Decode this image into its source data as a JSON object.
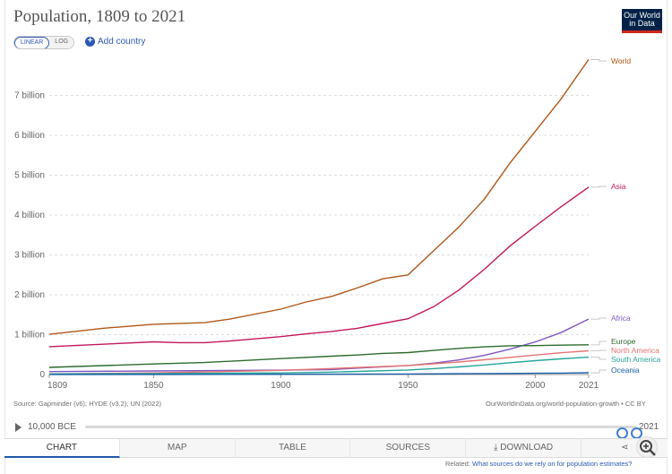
{
  "header": {
    "title": "Population, 1809 to 2021",
    "logo_line1": "Our World",
    "logo_line2": "in Data"
  },
  "controls": {
    "linear_label": "LINEAR",
    "log_label": "LOG",
    "add_country_label": "Add country"
  },
  "footer": {
    "source": "Source: Gapminder (v6); HYDE (v3.2); UN (2022)",
    "cite": "OurWorldInData.org/world-population-growth • CC BY",
    "related_prefix": "Related:",
    "related_link": "What sources do we rely on for population estimates?"
  },
  "timeline": {
    "start_label": "10,000 BCE",
    "end_label": "2021",
    "range_start": 0.977,
    "range_end": 1.0
  },
  "tabs": [
    "CHART",
    "MAP",
    "TABLE",
    "SOURCES",
    "DOWNLOAD"
  ],
  "colors": {
    "accent": "#2c5ab3",
    "logo_bg": "#002147",
    "logo_red": "#ce261e",
    "active_tab": "#1e5aa8"
  },
  "icons": {
    "play": "play-icon",
    "share": "share-icon",
    "zoom": "zoom-icon",
    "download": "download-icon"
  },
  "chart_data": {
    "type": "line",
    "title": "Population, 1809 to 2021",
    "x_range": [
      1809,
      2021
    ],
    "ylim": [
      0,
      8000000000
    ],
    "x_ticks": [
      1809,
      1850,
      1900,
      1950,
      2000,
      2021
    ],
    "y_ticks": [
      {
        "value": 0,
        "label": "0"
      },
      {
        "value": 1000000000,
        "label": "1 billion"
      },
      {
        "value": 2000000000,
        "label": "2 billion"
      },
      {
        "value": 3000000000,
        "label": "3 billion"
      },
      {
        "value": 4000000000,
        "label": "4 billion"
      },
      {
        "value": 5000000000,
        "label": "5 billion"
      },
      {
        "value": 6000000000,
        "label": "6 billion"
      },
      {
        "value": 7000000000,
        "label": "7 billion"
      }
    ],
    "grid": true,
    "series": [
      {
        "name": "World",
        "color": "#b1561a",
        "points": [
          [
            1809,
            1010000000
          ],
          [
            1830,
            1160000000
          ],
          [
            1850,
            1260000000
          ],
          [
            1870,
            1300000000
          ],
          [
            1880,
            1390000000
          ],
          [
            1900,
            1640000000
          ],
          [
            1910,
            1820000000
          ],
          [
            1920,
            1960000000
          ],
          [
            1930,
            2170000000
          ],
          [
            1940,
            2400000000
          ],
          [
            1950,
            2500000000
          ],
          [
            1960,
            3100000000
          ],
          [
            1970,
            3700000000
          ],
          [
            1980,
            4400000000
          ],
          [
            1990,
            5300000000
          ],
          [
            2000,
            6100000000
          ],
          [
            2010,
            6900000000
          ],
          [
            2021,
            7900000000
          ]
        ]
      },
      {
        "name": "Asia",
        "color": "#c2185b",
        "points": [
          [
            1809,
            700000000
          ],
          [
            1830,
            760000000
          ],
          [
            1850,
            820000000
          ],
          [
            1860,
            800000000
          ],
          [
            1870,
            800000000
          ],
          [
            1880,
            840000000
          ],
          [
            1900,
            950000000
          ],
          [
            1910,
            1020000000
          ],
          [
            1920,
            1080000000
          ],
          [
            1930,
            1160000000
          ],
          [
            1940,
            1280000000
          ],
          [
            1950,
            1400000000
          ],
          [
            1960,
            1700000000
          ],
          [
            1970,
            2120000000
          ],
          [
            1980,
            2640000000
          ],
          [
            1990,
            3220000000
          ],
          [
            2000,
            3720000000
          ],
          [
            2010,
            4200000000
          ],
          [
            2021,
            4700000000
          ]
        ]
      },
      {
        "name": "Africa",
        "color": "#7e57c2",
        "points": [
          [
            1809,
            74000000
          ],
          [
            1850,
            90000000
          ],
          [
            1900,
            110000000
          ],
          [
            1920,
            125000000
          ],
          [
            1950,
            228000000
          ],
          [
            1960,
            285000000
          ],
          [
            1970,
            366000000
          ],
          [
            1980,
            480000000
          ],
          [
            1990,
            635000000
          ],
          [
            2000,
            818000000
          ],
          [
            2010,
            1050000000
          ],
          [
            2021,
            1390000000
          ]
        ]
      },
      {
        "name": "Europe",
        "color": "#2e6b2f",
        "points": [
          [
            1809,
            180000000
          ],
          [
            1850,
            265000000
          ],
          [
            1870,
            300000000
          ],
          [
            1900,
            400000000
          ],
          [
            1920,
            460000000
          ],
          [
            1930,
            490000000
          ],
          [
            1940,
            530000000
          ],
          [
            1950,
            550000000
          ],
          [
            1960,
            605000000
          ],
          [
            1970,
            657000000
          ],
          [
            1980,
            694000000
          ],
          [
            1990,
            721000000
          ],
          [
            2000,
            726000000
          ],
          [
            2010,
            736000000
          ],
          [
            2021,
            745000000
          ]
        ]
      },
      {
        "name": "North America",
        "color": "#e57373",
        "points": [
          [
            1809,
            15000000
          ],
          [
            1850,
            40000000
          ],
          [
            1900,
            105000000
          ],
          [
            1920,
            150000000
          ],
          [
            1950,
            228000000
          ],
          [
            1960,
            270000000
          ],
          [
            1970,
            315000000
          ],
          [
            1980,
            370000000
          ],
          [
            1990,
            430000000
          ],
          [
            2000,
            490000000
          ],
          [
            2010,
            545000000
          ],
          [
            2021,
            595000000
          ]
        ]
      },
      {
        "name": "South America",
        "color": "#26a69a",
        "points": [
          [
            1809,
            15000000
          ],
          [
            1850,
            25000000
          ],
          [
            1900,
            40000000
          ],
          [
            1920,
            60000000
          ],
          [
            1950,
            114000000
          ],
          [
            1960,
            148000000
          ],
          [
            1970,
            192000000
          ],
          [
            1980,
            241000000
          ],
          [
            1990,
            297000000
          ],
          [
            2000,
            349000000
          ],
          [
            2010,
            393000000
          ],
          [
            2021,
            436000000
          ]
        ]
      },
      {
        "name": "Oceania",
        "color": "#1a5fa8",
        "points": [
          [
            1809,
            2000000
          ],
          [
            1850,
            3000000
          ],
          [
            1900,
            6000000
          ],
          [
            1950,
            12700000
          ],
          [
            1970,
            19700000
          ],
          [
            1990,
            27000000
          ],
          [
            2000,
            31000000
          ],
          [
            2010,
            36000000
          ],
          [
            2021,
            44000000
          ]
        ]
      }
    ],
    "legend_labels": [
      {
        "name": "World",
        "color": "#b1561a"
      },
      {
        "name": "Asia",
        "color": "#c2185b"
      },
      {
        "name": "Africa",
        "color": "#7e57c2"
      },
      {
        "name": "Europe",
        "color": "#2e6b2f"
      },
      {
        "name": "North America",
        "color": "#e57373"
      },
      {
        "name": "South America",
        "color": "#26a69a"
      },
      {
        "name": "Oceania",
        "color": "#1a5fa8"
      }
    ]
  }
}
